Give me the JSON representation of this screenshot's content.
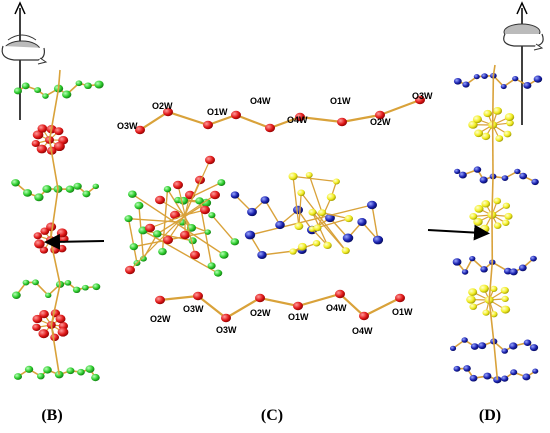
{
  "panels": {
    "left": {
      "label": "(B)",
      "colors": {
        "a": "#22cc22",
        "b": "#ee2222"
      }
    },
    "center": {
      "label": "(C)"
    },
    "right": {
      "label": "(D)",
      "colors": {
        "a": "#1a1ab8",
        "b": "#f0f020"
      }
    }
  },
  "water_chain_top": [
    "O3W",
    "O2W",
    "O1W",
    "O4W",
    "O4W",
    "O1W",
    "O2W",
    "O3W"
  ],
  "water_chain_bottom": [
    "O2W",
    "O3W",
    "O3W",
    "O2W",
    "O1W",
    "O4W",
    "O4W",
    "O1W"
  ],
  "colors": {
    "oxygen": "#dd1111",
    "bond": "#d9a23a",
    "green_atom": "#33cc33",
    "red_atom": "#ee2020",
    "blue_atom": "#1a22b0",
    "yellow_atom": "#f2ee22",
    "arrow": "#000000"
  },
  "icons": [
    "rotation-arrow-icon",
    "rotation-arrow-icon"
  ]
}
